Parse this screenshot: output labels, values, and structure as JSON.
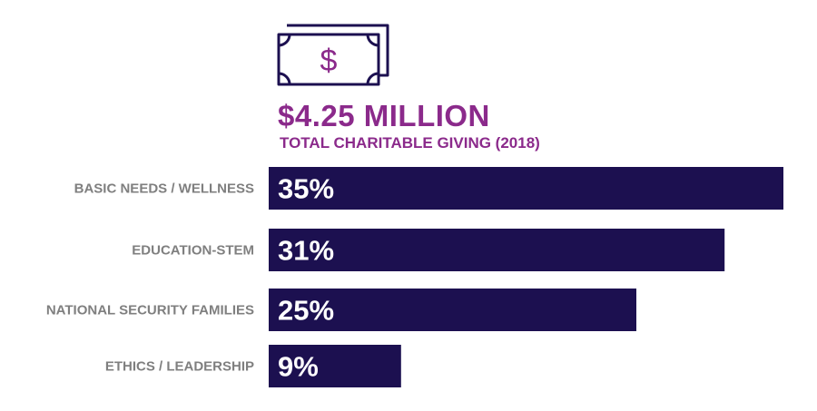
{
  "colors": {
    "accent": "#8b2a8b",
    "bar": "#1c1050",
    "label": "#7f7f7f",
    "bar_text": "#ffffff",
    "icon_stroke": "#1c1050"
  },
  "header": {
    "icon": "dollar-bill-icon",
    "amount": "$4.25 MILLION",
    "caption": "TOTAL CHARITABLE GIVING (2018)"
  },
  "chart_data": {
    "type": "bar",
    "orientation": "horizontal",
    "categories": [
      "BASIC NEEDS / WELLNESS",
      "EDUCATION-STEM",
      "NATIONAL SECURITY FAMILIES",
      "ETHICS / LEADERSHIP"
    ],
    "values": [
      35,
      31,
      25,
      9
    ],
    "value_labels": [
      "35%",
      "31%",
      "25%",
      "9%"
    ],
    "unit": "%",
    "xlim": [
      0,
      35
    ],
    "grid": false,
    "legend": "none"
  }
}
